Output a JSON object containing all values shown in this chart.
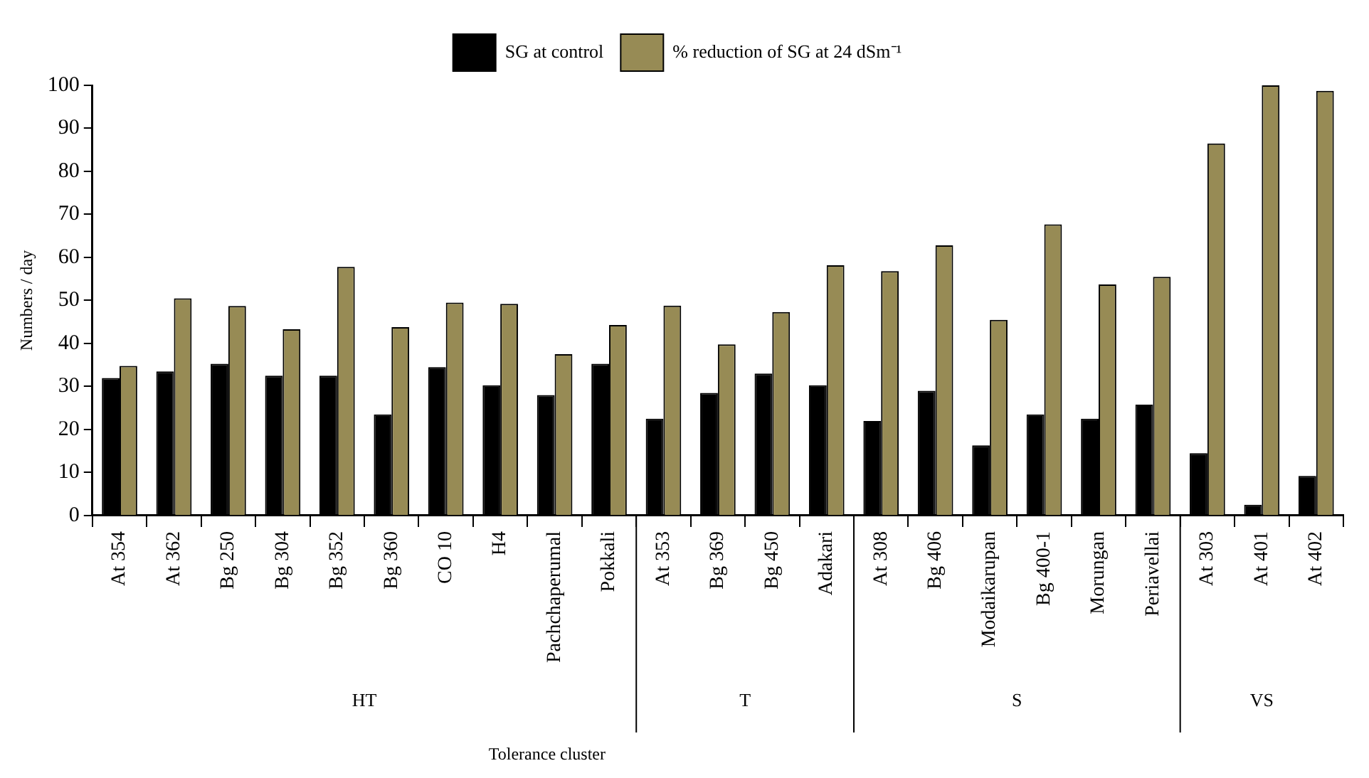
{
  "chart_data": {
    "type": "bar",
    "ylabel": "Numbers / day",
    "categories": [
      "At 354",
      "At 362",
      "Bg 250",
      "Bg 304",
      "Bg 352",
      "Bg 360",
      "CO 10",
      "H4",
      "Pachchaperumal",
      "Pokkali",
      "At 353",
      "Bg 369",
      "Bg 450",
      "Adakari",
      "At 308",
      "Bg 406",
      "Modaikarupan",
      "Bg 400-1",
      "Morungan",
      "Periavellai",
      "At 303",
      "At 401",
      "At 402"
    ],
    "series": [
      {
        "name": "SG at control",
        "color": "#000000",
        "values": [
          32,
          33.5,
          35.3,
          32.5,
          32.5,
          23.5,
          34.5,
          30.3,
          28,
          35.3,
          22.5,
          28.5,
          33,
          30.3,
          22,
          29,
          16.3,
          23.5,
          22.5,
          25.8,
          14.5,
          2.5,
          9.2
        ]
      },
      {
        "name": "% reduction of SG at 24 dSm⁻¹",
        "color": "#978b55",
        "values": [
          34.8,
          50.5,
          48.7,
          43.3,
          57.8,
          43.8,
          49.5,
          49.2,
          37.5,
          44.3,
          48.8,
          39.8,
          47.3,
          58.2,
          56.8,
          62.8,
          45.5,
          67.7,
          53.7,
          55.5,
          86.5,
          100,
          98.7
        ]
      }
    ],
    "annotations": [
      "HT",
      "T",
      "S",
      "VS",
      "Tolerance cluster"
    ],
    "ylim": [
      0,
      100
    ],
    "yticks": [
      0,
      10,
      20,
      30,
      40,
      50,
      60,
      70,
      80,
      90,
      100
    ],
    "grid": false,
    "legend": "top"
  }
}
